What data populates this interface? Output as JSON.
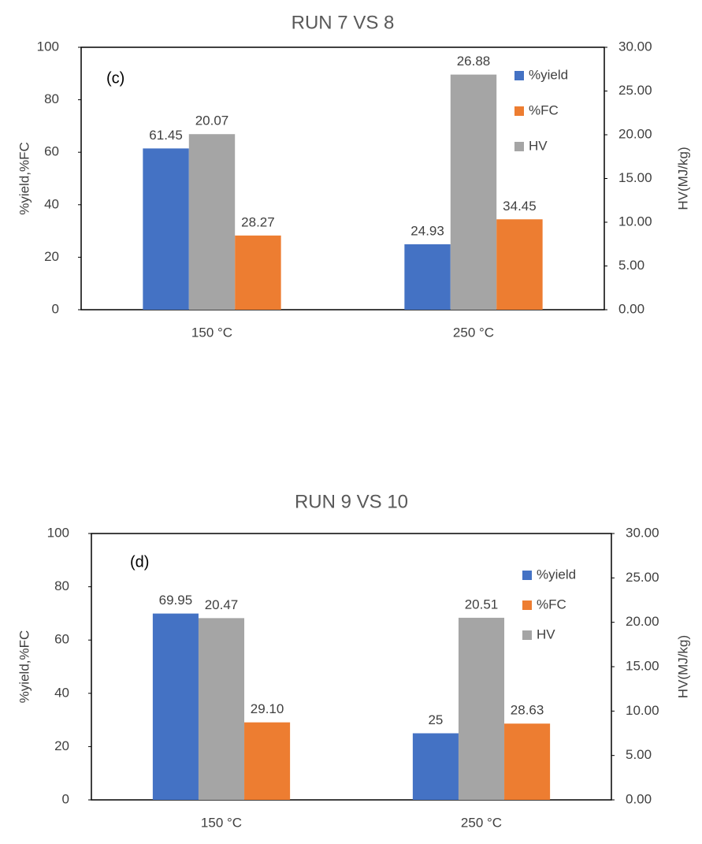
{
  "chart_data": [
    {
      "type": "bar",
      "title": "RUN 7 VS 8",
      "annotation": "(c)",
      "y_label": "%yield,%FC",
      "y2_label": "HV(MJ/kg)",
      "categories": [
        "150 °C",
        "250 °C"
      ],
      "series": [
        {
          "name": "%yield",
          "color": "#4472c4",
          "values": [
            61.45,
            24.93
          ]
        },
        {
          "name": "%FC",
          "color": "#ed7d31",
          "values": [
            28.27,
            34.45
          ]
        },
        {
          "name": "HV",
          "color": "#a5a5a5",
          "axis": "y2",
          "values": [
            20.07,
            26.88
          ]
        }
      ],
      "ylim": [
        0,
        100
      ],
      "yticks": [
        0,
        20,
        40,
        60,
        80,
        100
      ],
      "y2lim": [
        0,
        30
      ],
      "y2ticks": [
        {
          "value": 0,
          "label": "0.00"
        },
        {
          "value": 5,
          "label": "5.00"
        },
        {
          "value": 10,
          "label": "10.00"
        },
        {
          "value": 15,
          "label": "15.00"
        },
        {
          "value": 20,
          "label": "20.00"
        },
        {
          "value": 25,
          "label": "25.00"
        },
        {
          "value": 30,
          "label": "30.00"
        }
      ],
      "legend": "upper right"
    },
    {
      "type": "bar",
      "title": "RUN 9 VS 10",
      "annotation": "(d)",
      "y_label": "%yield,%FC",
      "y2_label": "HV(MJ/kg)",
      "categories": [
        "150 °C",
        "250 °C"
      ],
      "series": [
        {
          "name": "%yield",
          "color": "#4472c4",
          "values": [
            69.95,
            25
          ]
        },
        {
          "name": "%FC",
          "color": "#ed7d31",
          "values": [
            29.1,
            28.63
          ],
          "value_labels": [
            "29.10",
            "28.63"
          ]
        },
        {
          "name": "HV",
          "color": "#a5a5a5",
          "axis": "y2",
          "values": [
            20.47,
            20.51
          ]
        }
      ],
      "ylim": [
        0,
        100
      ],
      "yticks": [
        0,
        20,
        40,
        60,
        80,
        100
      ],
      "y2lim": [
        0,
        30
      ],
      "y2ticks": [
        {
          "value": 0,
          "label": "0.00"
        },
        {
          "value": 5,
          "label": "5.00"
        },
        {
          "value": 10,
          "label": "10.00"
        },
        {
          "value": 15,
          "label": "15.00"
        },
        {
          "value": 20,
          "label": "20.00"
        },
        {
          "value": 25,
          "label": "25.00"
        },
        {
          "value": 30,
          "label": "30.00"
        }
      ],
      "legend": "upper right"
    }
  ]
}
